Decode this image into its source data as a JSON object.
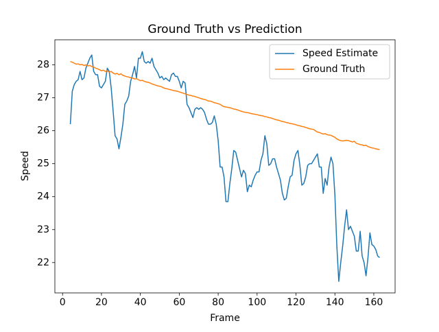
{
  "chart_data": {
    "type": "line",
    "title": "Ground Truth vs Prediction",
    "x_label": "Frame",
    "y_label": "Speed",
    "x": [
      4,
      5,
      6,
      7,
      8,
      9,
      10,
      11,
      12,
      13,
      14,
      15,
      16,
      17,
      18,
      19,
      20,
      21,
      22,
      23,
      24,
      25,
      26,
      27,
      28,
      29,
      30,
      31,
      32,
      33,
      34,
      35,
      36,
      37,
      38,
      39,
      40,
      41,
      42,
      43,
      44,
      45,
      46,
      47,
      48,
      49,
      50,
      51,
      52,
      53,
      54,
      55,
      56,
      57,
      58,
      59,
      60,
      61,
      62,
      63,
      64,
      65,
      66,
      67,
      68,
      69,
      70,
      71,
      72,
      73,
      74,
      75,
      76,
      77,
      78,
      79,
      80,
      81,
      82,
      83,
      84,
      85,
      86,
      87,
      88,
      89,
      90,
      91,
      92,
      93,
      94,
      95,
      96,
      97,
      98,
      99,
      100,
      101,
      102,
      103,
      104,
      105,
      106,
      107,
      108,
      109,
      110,
      111,
      112,
      113,
      114,
      115,
      116,
      117,
      118,
      119,
      120,
      121,
      122,
      123,
      124,
      125,
      126,
      127,
      128,
      129,
      130,
      131,
      132,
      133,
      134,
      135,
      136,
      137,
      138,
      139,
      140,
      141,
      142,
      143,
      144,
      145,
      146,
      147,
      148,
      149,
      150,
      151,
      152,
      153,
      154,
      155,
      156,
      157,
      158,
      159,
      160,
      161,
      162,
      163
    ],
    "series": [
      {
        "name": "Speed Estimate",
        "color": "#1f77b4",
        "values": [
          26.2,
          27.2,
          27.4,
          27.5,
          27.55,
          27.8,
          27.55,
          27.6,
          27.9,
          28.05,
          28.2,
          28.3,
          27.8,
          27.7,
          27.7,
          27.35,
          27.3,
          27.4,
          27.5,
          27.9,
          27.8,
          27.3,
          26.6,
          25.85,
          25.75,
          25.45,
          25.8,
          26.2,
          26.8,
          26.9,
          27.05,
          27.5,
          27.7,
          27.95,
          27.6,
          28.2,
          28.2,
          28.4,
          28.1,
          28.05,
          28.1,
          28.05,
          28.2,
          27.95,
          27.85,
          27.75,
          27.6,
          27.65,
          27.55,
          27.6,
          27.55,
          27.5,
          27.7,
          27.75,
          27.65,
          27.65,
          27.5,
          27.3,
          27.5,
          27.45,
          26.8,
          26.7,
          26.55,
          26.4,
          26.65,
          26.7,
          26.65,
          26.7,
          26.65,
          26.55,
          26.35,
          26.2,
          26.2,
          26.25,
          26.45,
          26.2,
          25.7,
          24.9,
          24.9,
          24.6,
          23.85,
          23.85,
          24.4,
          24.85,
          25.4,
          25.35,
          25.1,
          24.85,
          24.6,
          24.8,
          24.7,
          24.15,
          24.35,
          24.3,
          24.5,
          24.65,
          24.75,
          24.75,
          25.1,
          25.3,
          25.85,
          25.6,
          24.95,
          25.0,
          25.15,
          25.15,
          24.9,
          24.7,
          24.5,
          24.1,
          23.9,
          23.95,
          24.3,
          24.6,
          24.65,
          25.1,
          25.3,
          25.4,
          24.95,
          24.35,
          24.4,
          24.6,
          24.95,
          25.0,
          25.0,
          25.1,
          25.2,
          25.3,
          24.9,
          24.9,
          24.1,
          24.55,
          24.35,
          24.9,
          25.2,
          25.0,
          24.05,
          22.5,
          21.43,
          22.0,
          22.5,
          23.1,
          23.6,
          23.0,
          23.1,
          22.95,
          22.8,
          22.35,
          22.35,
          22.95,
          22.2,
          22.0,
          21.6,
          22.15,
          22.9,
          22.55,
          22.5,
          22.4,
          22.2,
          22.15
        ]
      },
      {
        "name": "Ground Truth",
        "color": "#ff7f0e",
        "values": [
          28.1,
          28.08,
          28.05,
          28.02,
          28.03,
          28.0,
          28.01,
          27.98,
          28.0,
          27.97,
          27.98,
          27.95,
          27.93,
          27.9,
          27.88,
          27.85,
          27.82,
          27.84,
          27.8,
          27.82,
          27.78,
          27.8,
          27.75,
          27.72,
          27.74,
          27.7,
          27.73,
          27.68,
          27.66,
          27.64,
          27.63,
          27.61,
          27.6,
          27.57,
          27.58,
          27.55,
          27.52,
          27.53,
          27.5,
          27.48,
          27.47,
          27.45,
          27.42,
          27.4,
          27.38,
          27.36,
          27.35,
          27.33,
          27.3,
          27.28,
          27.27,
          27.25,
          27.24,
          27.22,
          27.21,
          27.2,
          27.18,
          27.16,
          27.14,
          27.12,
          27.1,
          27.08,
          27.07,
          27.05,
          27.04,
          27.02,
          27.0,
          26.98,
          26.96,
          26.95,
          26.93,
          26.9,
          26.9,
          26.88,
          26.85,
          26.84,
          26.82,
          26.8,
          26.76,
          26.73,
          26.72,
          26.71,
          26.7,
          26.68,
          26.66,
          26.65,
          26.63,
          26.61,
          26.59,
          26.57,
          26.56,
          26.55,
          26.54,
          26.52,
          26.51,
          26.5,
          26.49,
          26.47,
          26.46,
          26.45,
          26.43,
          26.42,
          26.4,
          26.39,
          26.37,
          26.35,
          26.33,
          26.32,
          26.3,
          26.28,
          26.27,
          26.25,
          26.24,
          26.22,
          26.21,
          26.2,
          26.18,
          26.16,
          26.15,
          26.13,
          26.12,
          26.1,
          26.08,
          26.06,
          26.05,
          26.04,
          26.0,
          25.96,
          25.95,
          25.92,
          25.9,
          25.91,
          25.88,
          25.87,
          25.86,
          25.83,
          25.8,
          25.75,
          25.72,
          25.7,
          25.69,
          25.7,
          25.71,
          25.7,
          25.68,
          25.66,
          25.68,
          25.62,
          25.6,
          25.58,
          25.57,
          25.55,
          25.56,
          25.52,
          25.5,
          25.48,
          25.47,
          25.45,
          25.44,
          25.43
        ]
      }
    ],
    "xlim": [
      -3.95,
      170.95
    ],
    "ylim": [
      21.08,
      28.76
    ],
    "xticks": [
      0,
      20,
      40,
      60,
      80,
      100,
      120,
      140,
      160
    ],
    "yticks": [
      22,
      23,
      24,
      25,
      26,
      27,
      28
    ],
    "legend": "upper right",
    "grid": false
  }
}
